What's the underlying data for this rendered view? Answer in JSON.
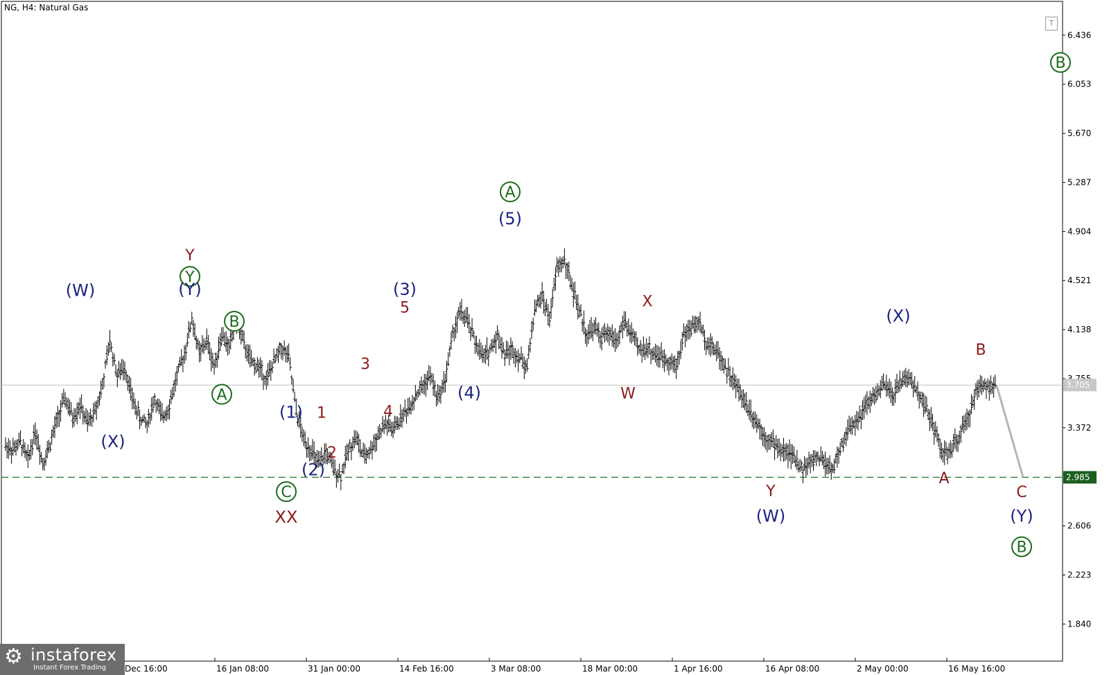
{
  "chart_title": "NG, H4:  Natural Gas",
  "logo": {
    "name": "instaforex",
    "tagline": "Instant Forex Trading"
  },
  "toolbar_button": "T",
  "colors": {
    "bars": "#000000",
    "wave_blue": "#1a237e",
    "wave_red": "#8b1a1a",
    "wave_green": "#1b6b1b",
    "support_line": "#2e7d32",
    "projection": "#b5b5b5",
    "current_price_bg": "#c8c8c8",
    "support_price_bg": "#1b5e20"
  },
  "chart_data": {
    "type": "line",
    "symbol": "NG",
    "timeframe": "H4",
    "instrument": "Natural Gas",
    "y_ticks": [
      "6.436",
      "6.053",
      "5.670",
      "5.287",
      "4.904",
      "4.521",
      "4.138",
      "3.755",
      "3.372",
      "2.606",
      "2.223",
      "1.840"
    ],
    "x_ticks": [
      "Dec 16:00",
      "16 Jan 08:00",
      "31 Jan 00:00",
      "14 Feb 16:00",
      "3 Mar 08:00",
      "18 Mar 00:00",
      "1 Apr 16:00",
      "16 Apr 08:00",
      "2 May 00:00",
      "16 May 16:00"
    ],
    "ylim": [
      1.55,
      6.7
    ],
    "current_price": "3.705",
    "support_level": "2.985",
    "series": [
      {
        "values": [
          3.23,
          3.2,
          3.26,
          3.12,
          3.35,
          3.1,
          3.25,
          3.45,
          3.6,
          3.45,
          3.55,
          3.4,
          3.5,
          3.7,
          4.05,
          3.78,
          3.85,
          3.6,
          3.45,
          3.4,
          3.6,
          3.45,
          3.55,
          3.78,
          3.95,
          4.22,
          3.95,
          4.05,
          3.85,
          4.1,
          4.0,
          4.2,
          4.02,
          3.88,
          3.85,
          3.75,
          3.88,
          4.0,
          3.92,
          3.5,
          3.28,
          3.2,
          3.08,
          3.18,
          3.05,
          3.0,
          3.2,
          3.3,
          3.15,
          3.2,
          3.32,
          3.4,
          3.35,
          3.45,
          3.52,
          3.62,
          3.7,
          3.78,
          3.6,
          3.75,
          4.1,
          4.28,
          4.2,
          4.05,
          3.92,
          3.98,
          4.1,
          3.95,
          3.98,
          3.92,
          3.85,
          4.3,
          4.4,
          4.22,
          4.62,
          4.68,
          4.48,
          4.28,
          4.1,
          4.15,
          4.08,
          4.1,
          4.05,
          4.2,
          4.1,
          3.98,
          4.0,
          3.95,
          3.92,
          3.9,
          3.85,
          4.1,
          4.15,
          4.2,
          4.05,
          4.0,
          3.92,
          3.8,
          3.7,
          3.6,
          3.5,
          3.4,
          3.3,
          3.25,
          3.2,
          3.18,
          3.12,
          3.05,
          3.1,
          3.15,
          3.1,
          3.05,
          3.2,
          3.35,
          3.42,
          3.5,
          3.58,
          3.65,
          3.7,
          3.62,
          3.72,
          3.78,
          3.68,
          3.6,
          3.45,
          3.3,
          3.15,
          3.2,
          3.32,
          3.42,
          3.62,
          3.72,
          3.7,
          3.68
        ]
      },
      {
        "name": "projection",
        "values": [
          3.7,
          2.985
        ]
      }
    ],
    "annotations": [
      {
        "text": "(W)",
        "color": "blue",
        "x": "8 Jan",
        "y": 4.4
      },
      {
        "text": "(X)",
        "color": "blue",
        "x": "12 Jan",
        "y": 3.22
      },
      {
        "text": "Y",
        "color": "red",
        "x": "16 Jan",
        "y": 4.68
      },
      {
        "text": "Y",
        "color": "green",
        "circle": true,
        "x": "16 Jan",
        "y": 4.51
      },
      {
        "text": "(Y)",
        "color": "blue",
        "x": "16 Jan",
        "y": 4.41
      },
      {
        "text": "B",
        "color": "green",
        "circle": true,
        "x": "22 Jan",
        "y": 4.16
      },
      {
        "text": "A",
        "color": "green",
        "circle": true,
        "x": "20 Jan",
        "y": 3.59
      },
      {
        "text": "(1)",
        "color": "blue",
        "x": "1 Feb",
        "y": 3.45
      },
      {
        "text": "1",
        "color": "red",
        "x": "3 Feb",
        "y": 3.45
      },
      {
        "text": "(2)",
        "color": "blue",
        "x": "4 Feb",
        "y": 3.0
      },
      {
        "text": "2",
        "color": "red",
        "x": "5 Feb",
        "y": 3.14
      },
      {
        "text": "C",
        "color": "green",
        "circle": true,
        "x": "28 Jan",
        "y": 2.83
      },
      {
        "text": "XX",
        "color": "red",
        "x": "28 Jan",
        "y": 2.63
      },
      {
        "text": "3",
        "color": "red",
        "x": "12 Feb",
        "y": 3.83
      },
      {
        "text": "4",
        "color": "red",
        "x": "13 Feb",
        "y": 3.46
      },
      {
        "text": "(3)",
        "color": "blue",
        "x": "14 Feb",
        "y": 4.41
      },
      {
        "text": "5",
        "color": "red",
        "x": "14 Feb",
        "y": 4.27
      },
      {
        "text": "(4)",
        "color": "blue",
        "x": "3 Mar",
        "y": 3.6
      },
      {
        "text": "A",
        "color": "green",
        "circle": true,
        "x": "9 Mar",
        "y": 5.17
      },
      {
        "text": "(5)",
        "color": "blue",
        "x": "9 Mar",
        "y": 4.96
      },
      {
        "text": "X",
        "color": "red",
        "x": "27 Mar",
        "y": 4.32
      },
      {
        "text": "W",
        "color": "red",
        "x": "25 Mar",
        "y": 3.6
      },
      {
        "text": "Y",
        "color": "red",
        "x": "19 Apr",
        "y": 2.84
      },
      {
        "text": "(W)",
        "color": "blue",
        "x": "19 Apr",
        "y": 2.64
      },
      {
        "text": "(X)",
        "color": "blue",
        "x": "7 May",
        "y": 4.2
      },
      {
        "text": "A",
        "color": "red",
        "x": "12 May",
        "y": 2.94
      },
      {
        "text": "B",
        "color": "red",
        "x": "16 May",
        "y": 3.94
      },
      {
        "text": "C",
        "color": "red",
        "x": "22 May",
        "y": 2.83
      },
      {
        "text": "(Y)",
        "color": "blue",
        "x": "22 May",
        "y": 2.64
      },
      {
        "text": "B",
        "color": "green",
        "circle": true,
        "x": "22 May",
        "y": 2.4
      },
      {
        "text": "B",
        "color": "green",
        "circle": true,
        "x": "off-right",
        "y": 6.18
      }
    ]
  }
}
